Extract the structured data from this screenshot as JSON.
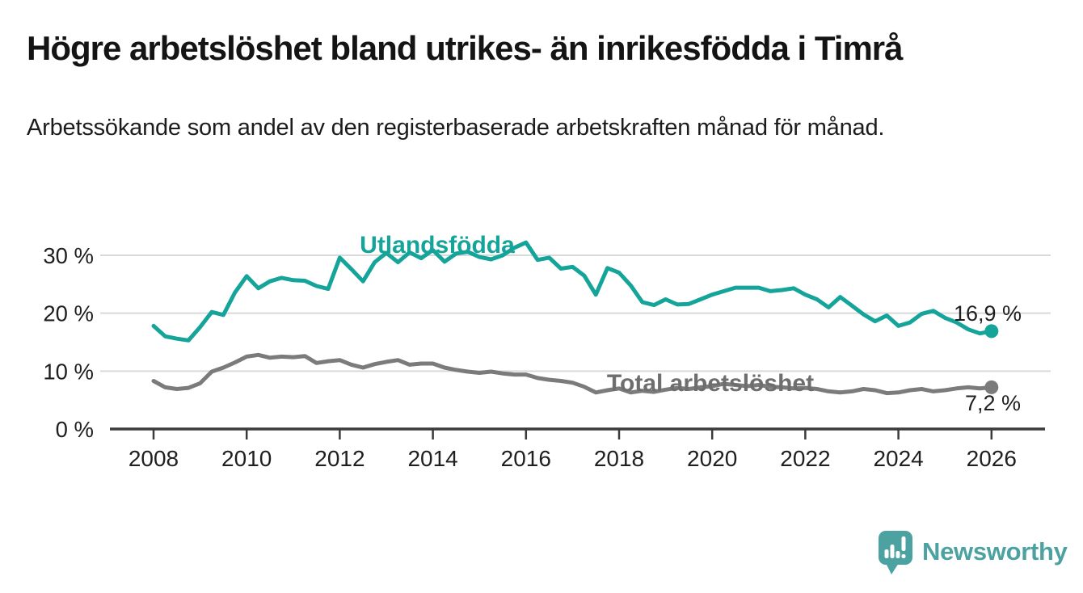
{
  "header": {
    "title": "Högre arbetslöshet bland utrikes- än inrikesfödda i Timrå",
    "subtitle": "Arbetssökande som andel av den registerbaserade arbetskraften månad för månad."
  },
  "chart_data": {
    "type": "line",
    "title": "Högre arbetslöshet bland utrikes- än inrikesfödda i Timrå",
    "xlabel": "",
    "ylabel": "",
    "x_unit": "year",
    "x_start": 2008,
    "x_step": 0.25,
    "x": [
      2008,
      2008.25,
      2008.5,
      2008.75,
      2009,
      2009.25,
      2009.5,
      2009.75,
      2010,
      2010.25,
      2010.5,
      2010.75,
      2011,
      2011.25,
      2011.5,
      2011.75,
      2012,
      2012.25,
      2012.5,
      2012.75,
      2013,
      2013.25,
      2013.5,
      2013.75,
      2014,
      2014.25,
      2014.5,
      2014.75,
      2015,
      2015.25,
      2015.5,
      2015.75,
      2016,
      2016.25,
      2016.5,
      2016.75,
      2017,
      2017.25,
      2017.5,
      2017.75,
      2018,
      2018.25,
      2018.5,
      2018.75,
      2019,
      2019.25,
      2019.5,
      2019.75,
      2020,
      2020.25,
      2020.5,
      2020.75,
      2021,
      2021.25,
      2021.5,
      2021.75,
      2022,
      2022.25,
      2022.5,
      2022.75,
      2023,
      2023.25,
      2023.5,
      2023.75,
      2024,
      2024.25,
      2024.5,
      2024.75,
      2025,
      2025.25,
      2025.5,
      2025.75,
      2026
    ],
    "series": [
      {
        "name": "Utlandsfödda",
        "color": "#14A49A",
        "label_color": "#14A49A",
        "end_label": "16,9 %",
        "end_value": 16.9,
        "values": [
          17.8,
          16.0,
          15.6,
          15.3,
          17.6,
          20.2,
          19.7,
          23.6,
          26.4,
          24.3,
          25.5,
          26.1,
          25.7,
          25.6,
          24.7,
          24.2,
          29.6,
          27.6,
          25.5,
          28.8,
          30.4,
          28.8,
          30.5,
          29.5,
          30.9,
          28.9,
          30.3,
          30.6,
          29.7,
          29.3,
          30.0,
          31.3,
          32.2,
          29.2,
          29.6,
          27.7,
          28.0,
          26.5,
          23.2,
          27.8,
          27.0,
          24.8,
          21.9,
          21.4,
          22.4,
          21.5,
          21.6,
          22.4,
          23.2,
          23.8,
          24.4,
          24.4,
          24.4,
          23.8,
          24.0,
          24.3,
          23.2,
          22.4,
          21.0,
          22.8,
          21.3,
          19.8,
          18.6,
          19.6,
          17.8,
          18.4,
          19.9,
          20.4,
          19.2,
          18.4,
          17.2,
          16.5,
          16.9
        ]
      },
      {
        "name": "Total arbetslöshet",
        "color": "#7B7B7B",
        "label_color": "#6E6E6E",
        "end_label": "7,2 %",
        "end_value": 7.2,
        "values": [
          8.3,
          7.2,
          6.9,
          7.1,
          7.9,
          9.9,
          10.6,
          11.5,
          12.5,
          12.8,
          12.3,
          12.5,
          12.4,
          12.6,
          11.4,
          11.7,
          11.9,
          11.1,
          10.6,
          11.2,
          11.6,
          11.9,
          11.1,
          11.3,
          11.3,
          10.6,
          10.2,
          9.9,
          9.7,
          9.9,
          9.6,
          9.4,
          9.4,
          8.8,
          8.5,
          8.3,
          8.0,
          7.3,
          6.3,
          6.7,
          7.0,
          6.3,
          6.6,
          6.4,
          6.8,
          7.1,
          6.9,
          7.2,
          7.4,
          7.8,
          7.6,
          7.4,
          7.6,
          7.3,
          7.2,
          7.0,
          7.1,
          6.9,
          6.5,
          6.3,
          6.5,
          6.9,
          6.7,
          6.2,
          6.3,
          6.7,
          6.9,
          6.5,
          6.7,
          7.0,
          7.2,
          7.0,
          7.2
        ]
      }
    ],
    "ylim": [
      0,
      34
    ],
    "yticks": [
      0,
      10,
      20,
      30
    ],
    "ytick_labels": [
      "0 %",
      "10 %",
      "20 %",
      "30 %"
    ],
    "xticks": [
      2008,
      2010,
      2012,
      2014,
      2016,
      2018,
      2020,
      2022,
      2024,
      2026
    ],
    "xtick_labels": [
      "2008",
      "2010",
      "2012",
      "2014",
      "2016",
      "2018",
      "2020",
      "2022",
      "2024",
      "2026"
    ],
    "grid": true,
    "legend_position": "inline-labels"
  },
  "footer": {
    "brand": "Newsworthy",
    "brand_color": "#4BA2A1",
    "logo_icon": "newsworthy-speech-bubble-bar-chart-icon"
  },
  "colors": {
    "grid": "#D9D9D9",
    "axis": "#3B3B3B",
    "tick_text": "#1F1F1F",
    "value_text": "#1F1F1F",
    "title_text": "#141414",
    "subtitle_text": "#1C1C1C"
  }
}
